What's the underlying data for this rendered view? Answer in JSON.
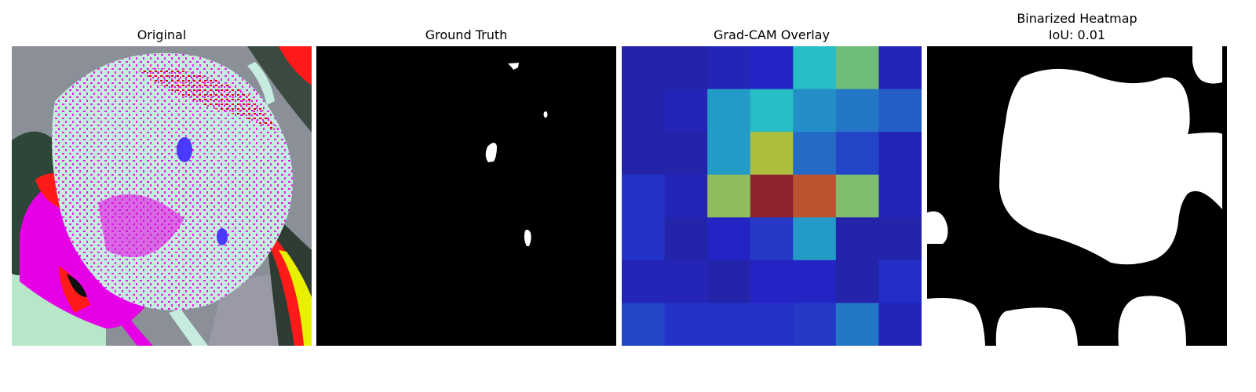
{
  "panels": [
    {
      "title": "Original"
    },
    {
      "title": "Ground Truth"
    },
    {
      "title": "Grad-CAM Overlay"
    },
    {
      "title_line1": "Binarized Heatmap",
      "title_line2": "IoU: 0.01"
    }
  ],
  "gradcam": {
    "grid_size": 7,
    "intensity": [
      [
        0.08,
        0.08,
        0.1,
        0.12,
        0.38,
        0.5,
        0.1
      ],
      [
        0.08,
        0.1,
        0.32,
        0.38,
        0.3,
        0.26,
        0.22
      ],
      [
        0.08,
        0.08,
        0.32,
        0.6,
        0.24,
        0.18,
        0.1
      ],
      [
        0.15,
        0.1,
        0.55,
        0.95,
        0.8,
        0.52,
        0.1
      ],
      [
        0.15,
        0.08,
        0.12,
        0.16,
        0.32,
        0.08,
        0.08
      ],
      [
        0.1,
        0.1,
        0.08,
        0.12,
        0.12,
        0.08,
        0.14
      ],
      [
        0.18,
        0.15,
        0.15,
        0.15,
        0.16,
        0.26,
        0.1
      ]
    ]
  },
  "colors": {
    "background": "#ffffff",
    "mask_fg": "#ffffff",
    "mask_bg": "#000000"
  }
}
